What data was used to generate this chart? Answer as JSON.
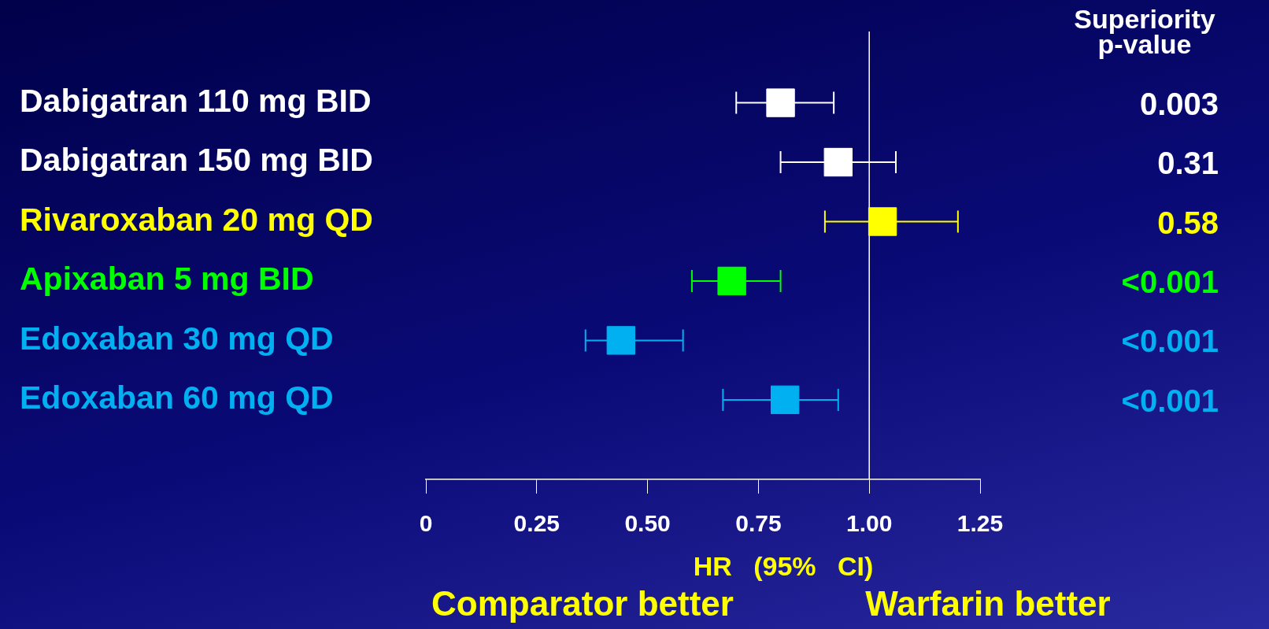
{
  "chart_data": {
    "type": "scatter",
    "orientation": "horizontal",
    "marker": "square",
    "categories": [
      "Dabigatran 110 mg BID",
      "Dabigatran 150 mg BID",
      "Rivaroxaban 20 mg QD",
      "Apixaban 5 mg BID",
      "Edoxaban 30 mg QD",
      "Edoxaban 60 mg QD"
    ],
    "values": [
      0.8,
      0.93,
      1.03,
      0.69,
      0.44,
      0.81
    ],
    "errors": [
      [
        0.7,
        0.92
      ],
      [
        0.8,
        1.06
      ],
      [
        0.9,
        1.2
      ],
      [
        0.6,
        0.8
      ],
      [
        0.36,
        0.58
      ],
      [
        0.67,
        0.93
      ]
    ],
    "colors": [
      "#ffffff",
      "#ffffff",
      "#ffff00",
      "#00ff00",
      "#00b0f0",
      "#00b0f0"
    ],
    "xlim": [
      0,
      1.25
    ],
    "xticks": [
      0,
      0.25,
      {
        "value": 0.5,
        "label": "0.50"
      },
      0.75,
      {
        "value": 1,
        "label": "1.00"
      },
      1.25
    ],
    "xlabel": "HR (95% CI)",
    "ref_lines": [
      {
        "axis": "x",
        "value": 1,
        "color": "#ffffff"
      }
    ],
    "annotations": [
      "Superiority p-value",
      "0.003",
      "0.31",
      "0.58",
      "<0.001",
      "<0.001",
      "<0.001",
      "Comparator better",
      "Warfarin better"
    ]
  }
}
